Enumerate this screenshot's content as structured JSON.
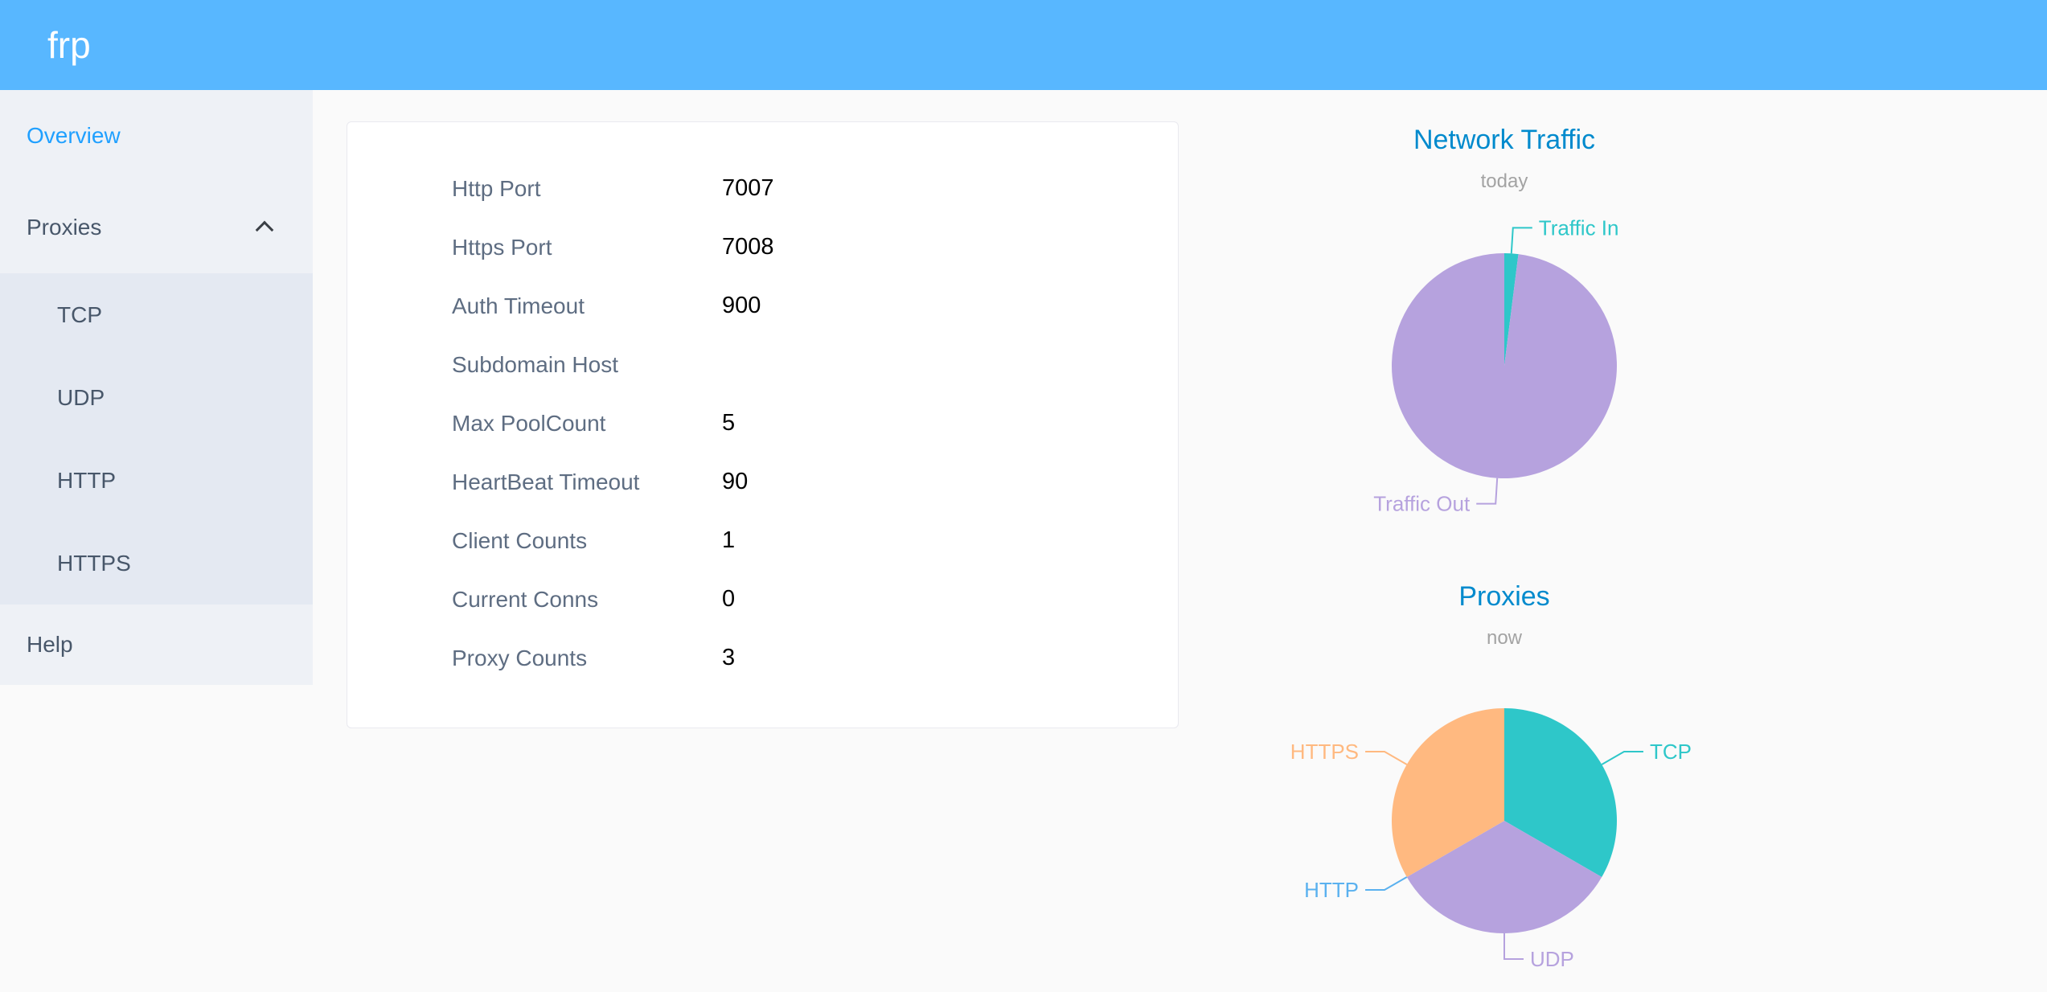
{
  "header": {
    "logo": "frp"
  },
  "colors": {
    "header_bg": "#58b7ff",
    "active_menu": "#20a0ff",
    "chart_title": "#008acd",
    "teal": "#2ec7c9",
    "purple": "#b6a2de",
    "blue": "#5ab1ef",
    "orange": "#ffb980"
  },
  "sidebar": {
    "items": [
      {
        "label": "Overview",
        "active": true
      },
      {
        "label": "Proxies",
        "expanded": true,
        "children": [
          "TCP",
          "UDP",
          "HTTP",
          "HTTPS"
        ]
      },
      {
        "label": "Help"
      }
    ]
  },
  "overview_card": {
    "rows": [
      {
        "label": "Http Port",
        "value": "7007"
      },
      {
        "label": "Https Port",
        "value": "7008"
      },
      {
        "label": "Auth Timeout",
        "value": "900"
      },
      {
        "label": "Subdomain Host",
        "value": ""
      },
      {
        "label": "Max PoolCount",
        "value": "5"
      },
      {
        "label": "HeartBeat Timeout",
        "value": "90"
      },
      {
        "label": "Client Counts",
        "value": "1"
      },
      {
        "label": "Current Conns",
        "value": "0"
      },
      {
        "label": "Proxy Counts",
        "value": "3"
      }
    ]
  },
  "chart_data": [
    {
      "type": "pie",
      "title": "Network Traffic",
      "subtitle": "today",
      "legend_position": "none",
      "slices": [
        {
          "label": "Traffic In",
          "value": 2,
          "color": "#2ec7c9"
        },
        {
          "label": "Traffic Out",
          "value": 98,
          "color": "#b6a2de"
        }
      ]
    },
    {
      "type": "pie",
      "title": "Proxies",
      "subtitle": "now",
      "legend_position": "none",
      "slices": [
        {
          "label": "TCP",
          "value": 1,
          "color": "#2ec7c9"
        },
        {
          "label": "UDP",
          "value": 1,
          "color": "#b6a2de"
        },
        {
          "label": "HTTP",
          "value": 0,
          "color": "#5ab1ef"
        },
        {
          "label": "HTTPS",
          "value": 1,
          "color": "#ffb980"
        }
      ]
    }
  ]
}
